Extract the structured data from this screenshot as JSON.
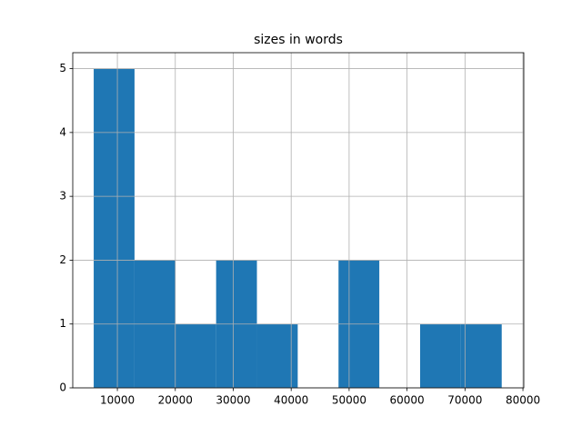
{
  "chart_data": {
    "type": "histogram",
    "title": "sizes in words",
    "bins": [
      5919,
      12961,
      20003,
      27045,
      34087,
      41129,
      48171,
      55213,
      62255,
      69297,
      76339
    ],
    "values": [
      5,
      2,
      1,
      2,
      1,
      0,
      2,
      0,
      1,
      1
    ],
    "color": "#1f77b4",
    "xlim": [
      2300,
      80150
    ],
    "xticks": [
      10000,
      20000,
      30000,
      40000,
      50000,
      60000,
      70000,
      80000
    ],
    "ylim": [
      0,
      5.25
    ],
    "yticks": [
      0,
      1,
      2,
      3,
      4,
      5
    ],
    "grid": true
  }
}
